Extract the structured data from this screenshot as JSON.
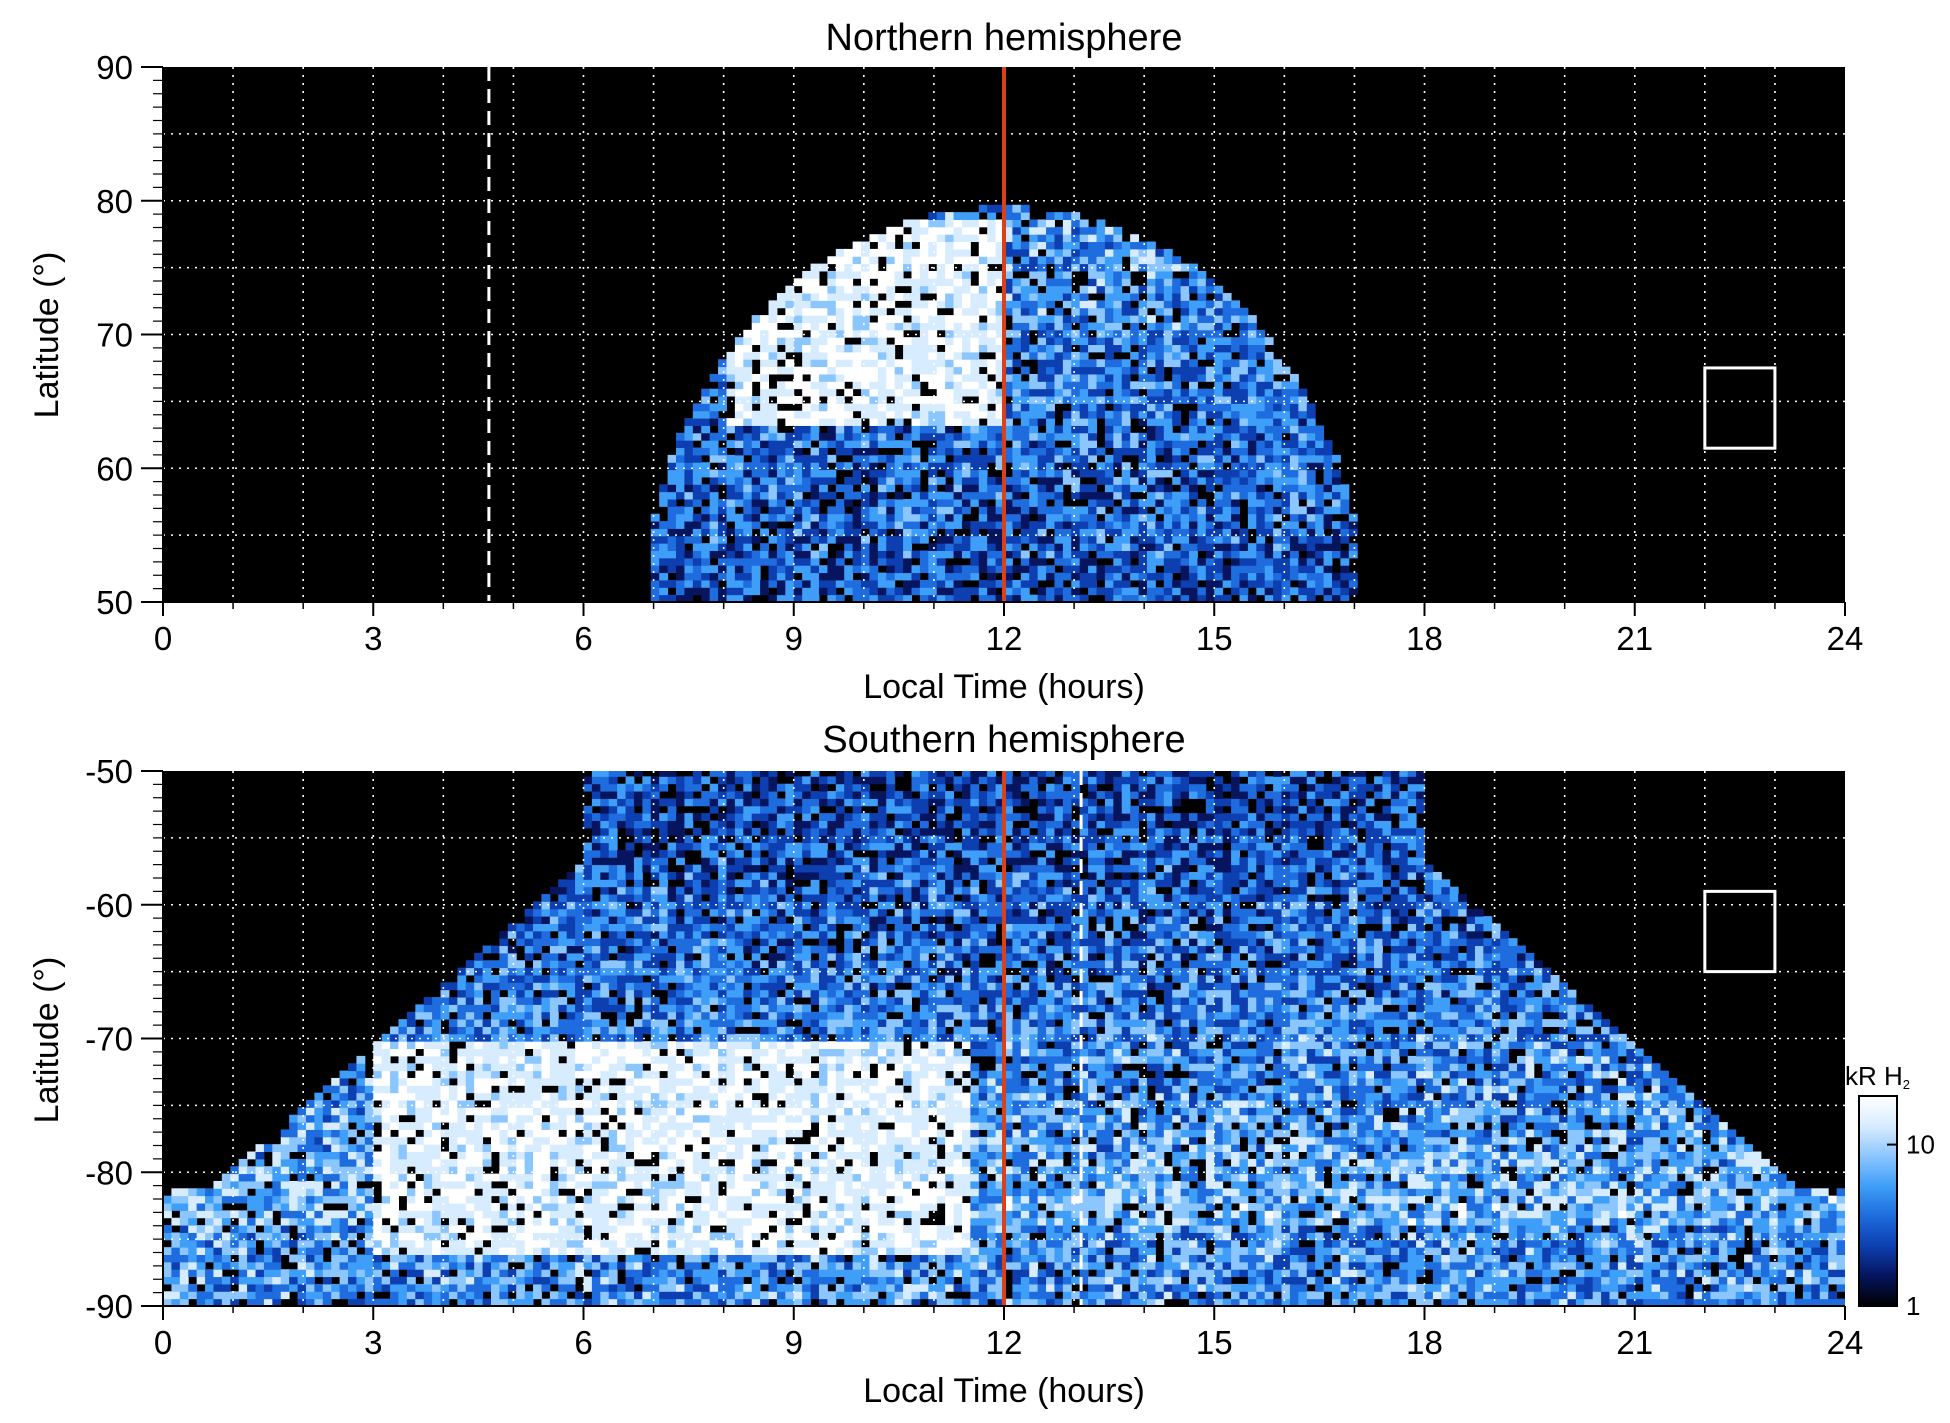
{
  "chart_data": [
    {
      "type": "heatmap",
      "title": "Northern hemisphere",
      "xlabel": "Local Time (hours)",
      "ylabel": "Latitude (°)",
      "xlim": [
        0,
        24
      ],
      "ylim": [
        50,
        90
      ],
      "xticks": [
        "0",
        "3",
        "6",
        "9",
        "12",
        "15",
        "18",
        "21",
        "24"
      ],
      "yticks": [
        "50",
        "60",
        "70",
        "80",
        "90"
      ],
      "grid": true,
      "noon_line_lt": 12,
      "noon_line_color": "#d9411b",
      "dashed_line_lt": 4.65,
      "box": {
        "lt": [
          22,
          23
        ],
        "lat": [
          61.5,
          67.5
        ]
      },
      "coverage": {
        "lt_range": [
          7,
          17.2
        ],
        "lat_edge_at_noon": 79.5
      },
      "bright_region": {
        "lt": [
          8,
          12
        ],
        "lat": [
          63,
          78.5
        ],
        "kR": "saturated (>20)"
      }
    },
    {
      "type": "heatmap",
      "title": "Southern hemisphere",
      "xlabel": "Local Time (hours)",
      "ylabel": "Latitude (°)",
      "xlim": [
        0,
        24
      ],
      "ylim": [
        -90,
        -50
      ],
      "xticks": [
        "0",
        "3",
        "6",
        "9",
        "12",
        "15",
        "18",
        "21",
        "24"
      ],
      "yticks": [
        "-90",
        "-80",
        "-70",
        "-60",
        "-50"
      ],
      "grid": true,
      "noon_line_lt": 12,
      "noon_line_color": "#d9411b",
      "dashed_line_lt": 13.1,
      "box": {
        "lt": [
          22,
          23
        ],
        "lat": [
          -65,
          -59
        ]
      },
      "coverage": {
        "lt_range": [
          0,
          24
        ],
        "lat_edge_at_midnight": -81
      },
      "bright_region": {
        "lt": [
          3,
          11.5
        ],
        "lat": [
          -86,
          -70
        ],
        "kR": "saturated (>20)"
      }
    }
  ],
  "colorbar": {
    "label_main": "kR H",
    "label_sub": "2",
    "scale": "log",
    "range": [
      1,
      20
    ],
    "ticks": [
      "1",
      "10"
    ],
    "colors": [
      "#000000",
      "#06155e",
      "#0d3fb0",
      "#1e6cdd",
      "#3f9ef7",
      "#8cc6ff",
      "#d8ecff",
      "#ffffff"
    ]
  },
  "colors": {
    "background": "#000000",
    "grid": "#ffffff",
    "emission_blue": "#1e6cdd"
  }
}
